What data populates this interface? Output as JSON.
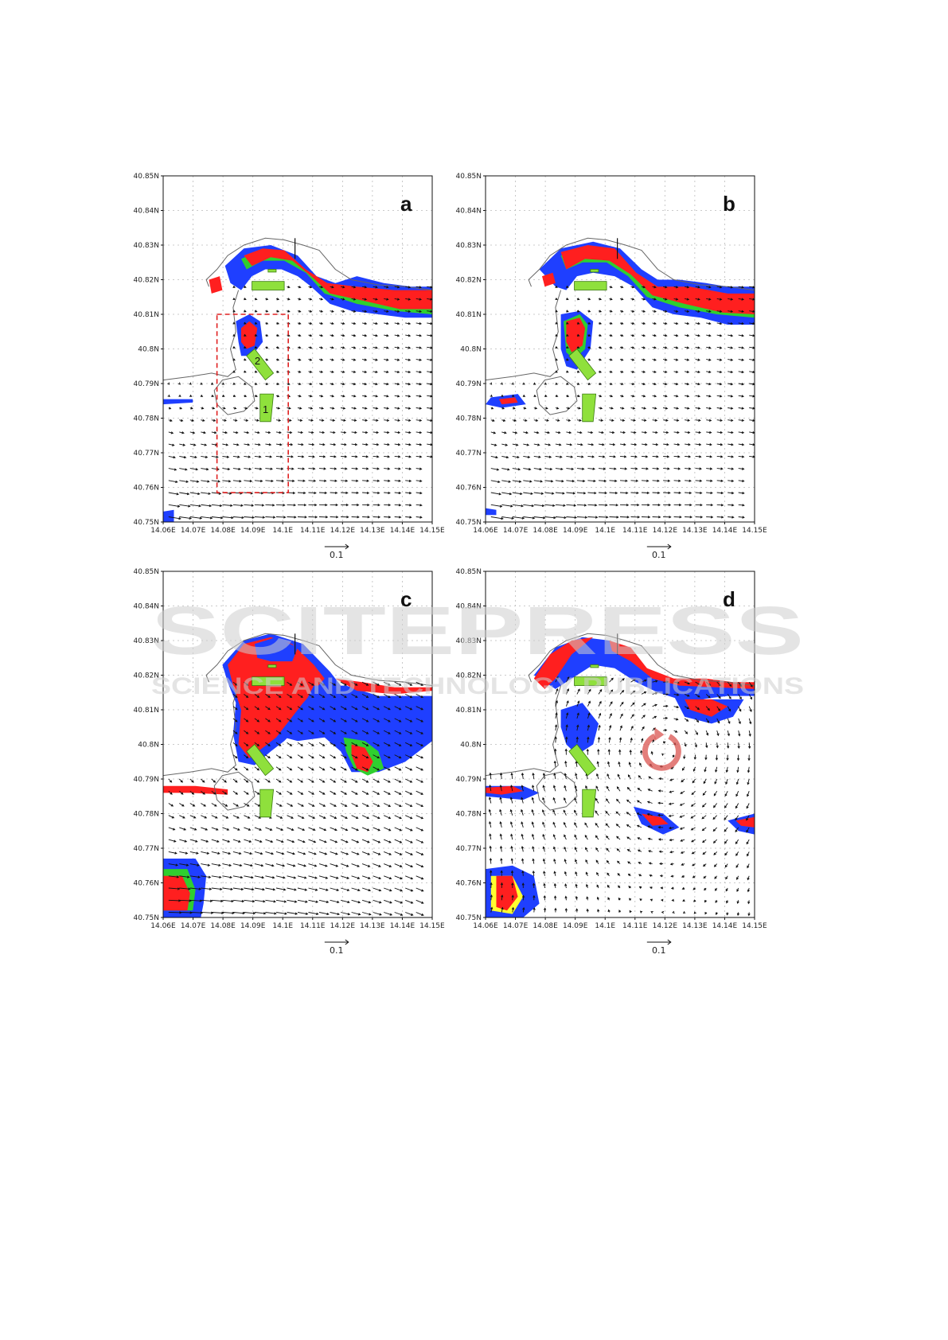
{
  "figure": {
    "x_ticks": [
      "14.06E",
      "14.07E",
      "14.08E",
      "14.09E",
      "14.1E",
      "14.11E",
      "14.12E",
      "14.13E",
      "14.14E",
      "14.15E"
    ],
    "y_ticks": [
      "40.75N",
      "40.76N",
      "40.77N",
      "40.78N",
      "40.79N",
      "40.8N",
      "40.81N",
      "40.82N",
      "40.83N",
      "40.84N",
      "40.85N"
    ],
    "lon_range": [
      14.06,
      14.15
    ],
    "lat_range": [
      40.75,
      40.85
    ],
    "vector_scale_label": "0.1",
    "grid": true,
    "colors": {
      "red": "#ff1f1f",
      "blue": "#1f3fff",
      "green": "#2fcf2f",
      "yellow": "#ffff30",
      "zone_fill": "#8fe03c",
      "zone_stroke": "#3a7a10",
      "eddy": "#d9534f",
      "inset_box": "#e02020"
    },
    "panels": [
      {
        "label": "a",
        "zone_labels": [
          "1",
          "2"
        ],
        "has_inset_box": true,
        "has_eddy_marker": false
      },
      {
        "label": "b",
        "has_inset_box": false,
        "has_eddy_marker": false
      },
      {
        "label": "c",
        "has_inset_box": false,
        "has_eddy_marker": false
      },
      {
        "label": "d",
        "has_inset_box": false,
        "has_eddy_marker": true
      }
    ]
  },
  "watermark": {
    "line1": "SCITEPRESS",
    "line2": "SCIENCE AND TECHNOLOGY PUBLICATIONS"
  }
}
